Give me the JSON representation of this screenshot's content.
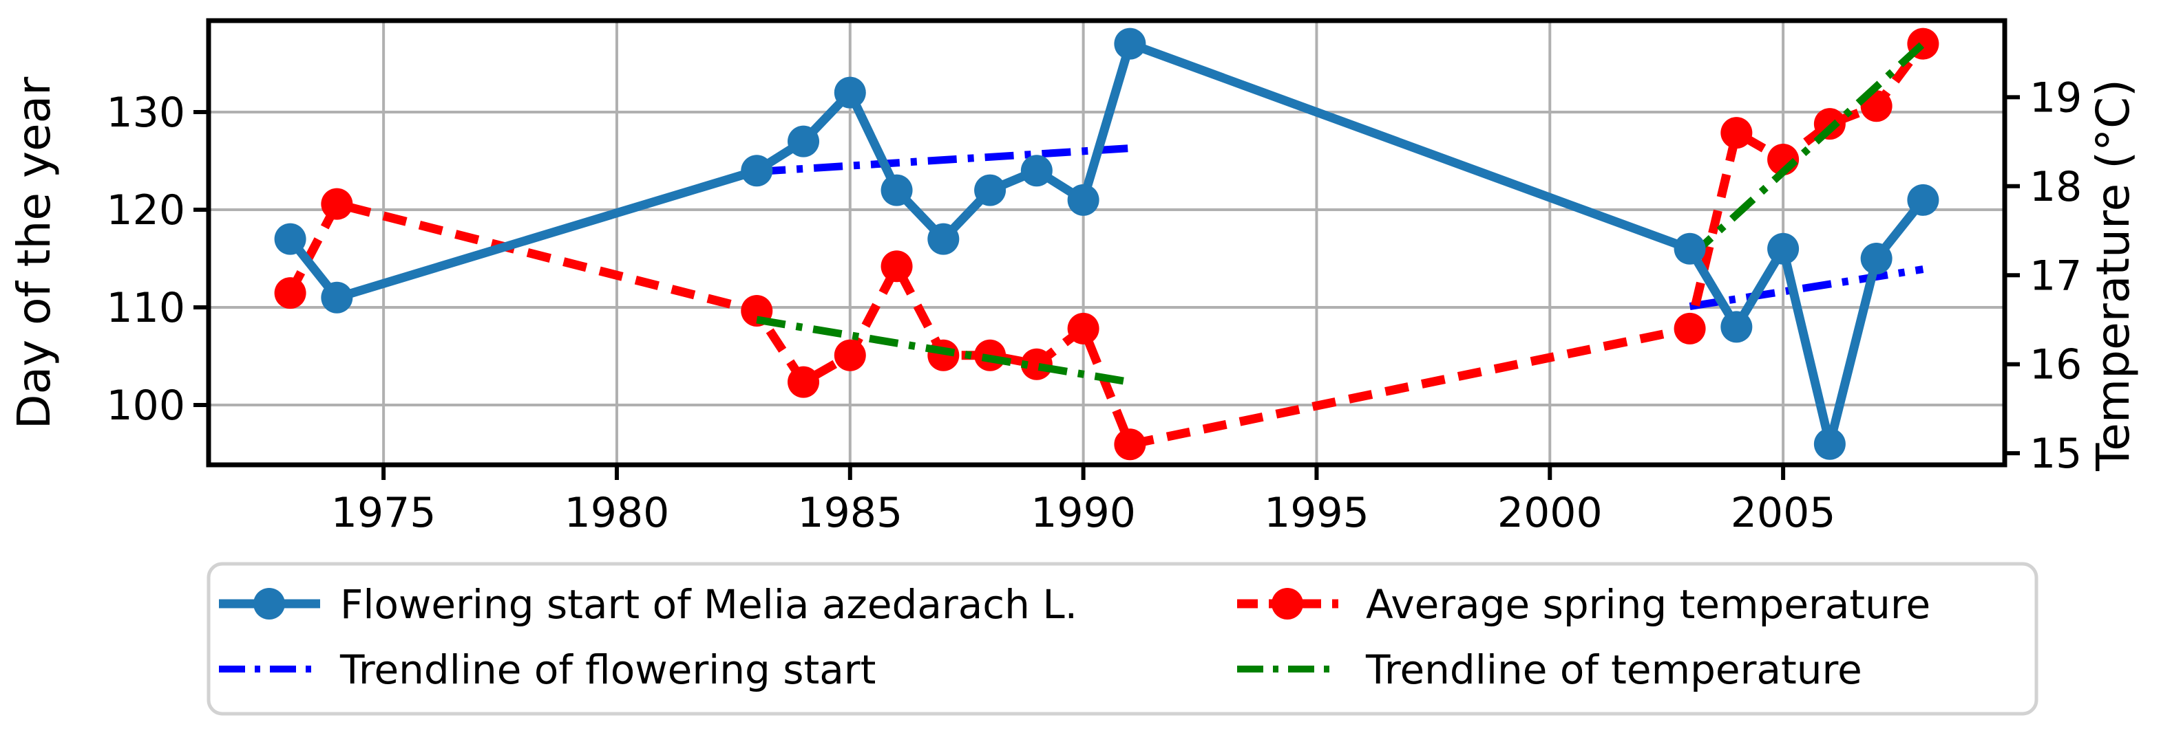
{
  "chart_data": {
    "type": "line",
    "title": "",
    "xlabel": "",
    "ylabel_left": "Day of the year",
    "ylabel_right": "Temperature (°C)",
    "grid": true,
    "legend_position": "bottom, 2 columns",
    "x_axis": {
      "ticks": [
        1975,
        1980,
        1985,
        1990,
        1995,
        2000,
        2005
      ],
      "lim": [
        1971.25,
        2009.75
      ]
    },
    "day_axis": {
      "ticks": [
        100,
        110,
        120,
        130
      ],
      "lim": [
        93.87,
        139.37
      ]
    },
    "temp_axis": {
      "ticks": [
        15,
        16,
        17,
        18,
        19
      ],
      "lim": [
        14.87,
        19.86
      ]
    },
    "series": [
      {
        "id": "flowering",
        "name": "Flowering start of Melia azedarach L.",
        "axis": "day",
        "color": "#1f77b4",
        "style": "solid",
        "marker": "circle",
        "points": [
          [
            1973,
            117
          ],
          [
            1974,
            111
          ],
          [
            1983,
            124
          ],
          [
            1984,
            127
          ],
          [
            1985,
            132
          ],
          [
            1986,
            122
          ],
          [
            1987,
            117
          ],
          [
            1988,
            122
          ],
          [
            1989,
            124
          ],
          [
            1990,
            121
          ],
          [
            1991,
            137
          ],
          [
            2003,
            116
          ],
          [
            2004,
            108
          ],
          [
            2005,
            116
          ],
          [
            2006,
            96
          ],
          [
            2007,
            115
          ],
          [
            2008,
            121
          ]
        ]
      },
      {
        "id": "temperature",
        "name": "Average spring temperature",
        "axis": "temp",
        "color": "#ff0000",
        "style": "dashed",
        "marker": "circle",
        "points": [
          [
            1973,
            16.8
          ],
          [
            1974,
            17.8
          ],
          [
            1983,
            16.6
          ],
          [
            1984,
            15.8
          ],
          [
            1985,
            16.1
          ],
          [
            1986,
            17.1
          ],
          [
            1987,
            16.1
          ],
          [
            1988,
            16.1
          ],
          [
            1989,
            16.0
          ],
          [
            1990,
            16.4
          ],
          [
            1991,
            15.1
          ],
          [
            2003,
            16.4
          ],
          [
            2004,
            18.6
          ],
          [
            2005,
            18.3
          ],
          [
            2006,
            18.7
          ],
          [
            2007,
            18.9
          ],
          [
            2008,
            19.6
          ]
        ]
      },
      {
        "id": "flowering-trend",
        "name": "Trendline of flowering start",
        "axis": "day",
        "color": "#0000ff",
        "style": "dashdot",
        "marker": "none",
        "segments": [
          [
            [
              1983,
              123.9
            ],
            [
              1991,
              126.3
            ]
          ],
          [
            [
              2003,
              110.1
            ],
            [
              2008,
              113.9
            ]
          ]
        ]
      },
      {
        "id": "temperature-trend",
        "name": "Trendline of temperature",
        "axis": "temp",
        "color": "#008000",
        "style": "dashdot",
        "marker": "none",
        "segments": [
          [
            [
              1983,
              16.5
            ],
            [
              1991,
              15.8
            ]
          ],
          [
            [
              2003,
              17.2
            ],
            [
              2008,
              19.6
            ]
          ]
        ]
      }
    ]
  },
  "colors": {
    "background": "#ffffff",
    "grid": "#b0b0b0",
    "axis": "#000000",
    "legend_border": "#d2d2d2"
  }
}
